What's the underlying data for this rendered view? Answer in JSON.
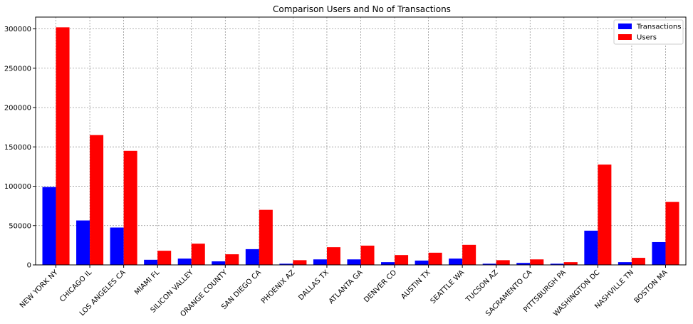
{
  "chart_data": {
    "type": "bar",
    "title": "Comparison Users and No of Transactions",
    "xlabel": "",
    "ylabel": "",
    "ylim": [
      0,
      315000
    ],
    "yticks": [
      0,
      50000,
      100000,
      150000,
      200000,
      250000,
      300000
    ],
    "grid": true,
    "legend_position": "top-right",
    "categories": [
      "NEW YORK NY",
      "CHICAGO IL",
      "LOS ANGELES CA",
      "MIAMI FL",
      "SILICON VALLEY",
      "ORANGE COUNTY",
      "SAN DIEGO CA",
      "PHOENIX AZ",
      "DALLAS TX",
      "ATLANTA GA",
      "DENVER CO",
      "AUSTIN TX",
      "SEATTLE WA",
      "TUCSON AZ",
      "SACRAMENTO CA",
      "PITTSBURGH PA",
      "WASHINGTON DC",
      "NASHVILLE TN",
      "BOSTON MA"
    ],
    "series": [
      {
        "name": "Transactions",
        "color": "#0000ff",
        "values": [
          99000,
          56500,
          47500,
          6500,
          8000,
          4500,
          20000,
          1500,
          7000,
          7000,
          3500,
          5500,
          8000,
          1500,
          2500,
          1500,
          43500,
          3500,
          29000
        ]
      },
      {
        "name": "Users",
        "color": "#ff0000",
        "values": [
          302000,
          165000,
          145000,
          18000,
          27000,
          13500,
          70000,
          6000,
          22500,
          24500,
          12500,
          15500,
          25500,
          6000,
          7000,
          3500,
          127500,
          9000,
          80000
        ]
      }
    ]
  }
}
